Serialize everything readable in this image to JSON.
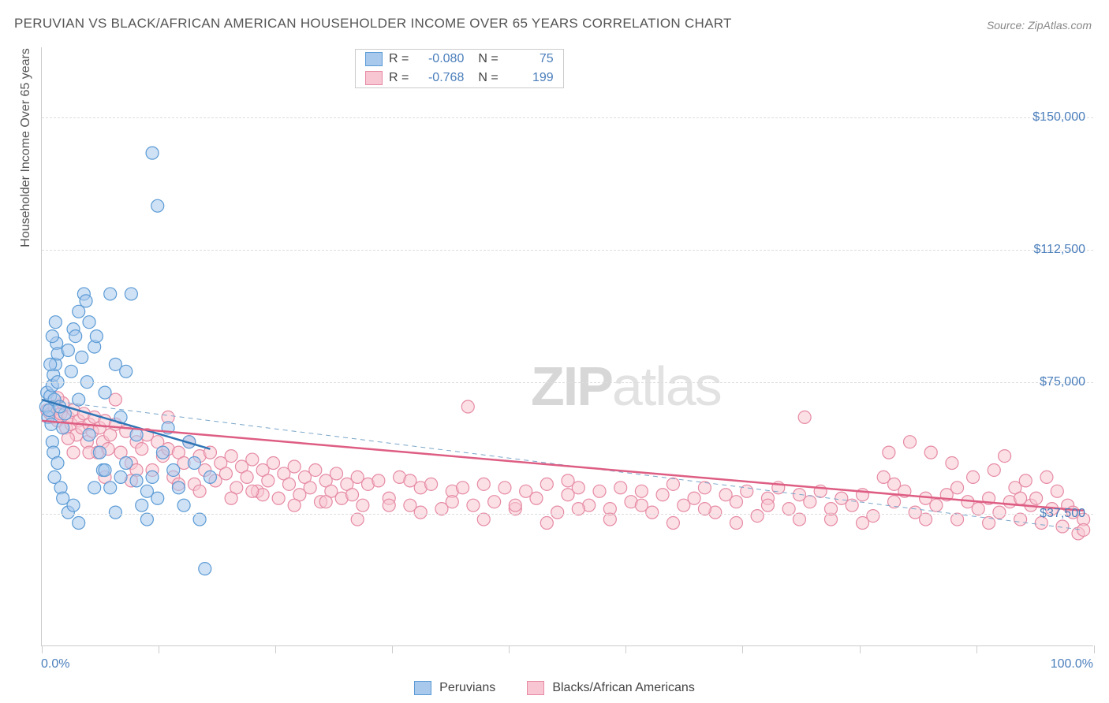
{
  "title": "PERUVIAN VS BLACK/AFRICAN AMERICAN HOUSEHOLDER INCOME OVER 65 YEARS CORRELATION CHART",
  "source": "Source: ZipAtlas.com",
  "y_axis_title": "Householder Income Over 65 years",
  "watermark_a": "ZIP",
  "watermark_b": "atlas",
  "xlim": [
    0,
    100
  ],
  "ylim": [
    0,
    170000
  ],
  "y_ticks": [
    37500,
    75000,
    112500,
    150000
  ],
  "y_tick_labels": [
    "$37,500",
    "$75,000",
    "$112,500",
    "$150,000"
  ],
  "x_first_label": "0.0%",
  "x_last_label": "100.0%",
  "x_tick_positions": [
    0,
    11.1,
    22.2,
    33.3,
    44.4,
    55.5,
    66.6,
    77.7,
    88.8,
    100
  ],
  "grid_color": "#dddddd",
  "text_color_axis": "#4a7ebb",
  "series": [
    {
      "name": "Peruvians",
      "R": "-0.080",
      "N": "75",
      "color_fill": "#a8c8ec",
      "color_stroke": "#5b9bd5",
      "fill_opacity": 0.55,
      "marker_radius": 8,
      "line_color": "#2e75b6",
      "line_width": 2.5,
      "trend": {
        "x0": 0,
        "y0": 70000,
        "x1": 16,
        "y1": 56000
      },
      "dash_line": {
        "x0": 0,
        "y0": 70000,
        "x1": 99,
        "y1": 33000,
        "color": "#7aa6c9",
        "dash": "6,5",
        "width": 1
      },
      "points": [
        [
          0.4,
          68000
        ],
        [
          0.5,
          72000
        ],
        [
          0.6,
          65000
        ],
        [
          0.7,
          67000
        ],
        [
          0.8,
          71000
        ],
        [
          0.9,
          63000
        ],
        [
          1.0,
          74000
        ],
        [
          1.1,
          77000
        ],
        [
          1.2,
          70000
        ],
        [
          1.3,
          80000
        ],
        [
          1.4,
          86000
        ],
        [
          1.5,
          83000
        ],
        [
          1.0,
          58000
        ],
        [
          1.1,
          55000
        ],
        [
          1.2,
          48000
        ],
        [
          1.5,
          52000
        ],
        [
          1.8,
          45000
        ],
        [
          2.0,
          62000
        ],
        [
          2.2,
          66000
        ],
        [
          2.5,
          84000
        ],
        [
          2.8,
          78000
        ],
        [
          3.0,
          90000
        ],
        [
          3.2,
          88000
        ],
        [
          3.5,
          95000
        ],
        [
          3.5,
          70000
        ],
        [
          3.8,
          82000
        ],
        [
          4.0,
          100000
        ],
        [
          4.2,
          98000
        ],
        [
          4.3,
          75000
        ],
        [
          4.5,
          60000
        ],
        [
          5.0,
          85000
        ],
        [
          5.2,
          88000
        ],
        [
          5.5,
          55000
        ],
        [
          5.8,
          50000
        ],
        [
          6.0,
          72000
        ],
        [
          6.5,
          45000
        ],
        [
          6.5,
          100000
        ],
        [
          7.0,
          38000
        ],
        [
          7.0,
          80000
        ],
        [
          7.5,
          48000
        ],
        [
          8.0,
          52000
        ],
        [
          8.0,
          78000
        ],
        [
          8.5,
          100000
        ],
        [
          9.0,
          60000
        ],
        [
          9.5,
          40000
        ],
        [
          10.0,
          36000
        ],
        [
          10.0,
          44000
        ],
        [
          10.5,
          48000
        ],
        [
          10.5,
          140000
        ],
        [
          11.0,
          125000
        ],
        [
          11.5,
          55000
        ],
        [
          12.0,
          62000
        ],
        [
          12.5,
          50000
        ],
        [
          13.0,
          45000
        ],
        [
          13.5,
          40000
        ],
        [
          14.0,
          58000
        ],
        [
          14.5,
          52000
        ],
        [
          15.0,
          36000
        ],
        [
          15.5,
          22000
        ],
        [
          16.0,
          48000
        ],
        [
          2.0,
          42000
        ],
        [
          2.5,
          38000
        ],
        [
          3.0,
          40000
        ],
        [
          3.5,
          35000
        ],
        [
          0.8,
          80000
        ],
        [
          1.0,
          88000
        ],
        [
          1.3,
          92000
        ],
        [
          1.5,
          75000
        ],
        [
          1.7,
          68000
        ],
        [
          4.5,
          92000
        ],
        [
          5.0,
          45000
        ],
        [
          6.0,
          50000
        ],
        [
          7.5,
          65000
        ],
        [
          9.0,
          47000
        ],
        [
          11.0,
          42000
        ]
      ]
    },
    {
      "name": "Blacks/African Americans",
      "R": "-0.768",
      "N": "199",
      "color_fill": "#f7c6d2",
      "color_stroke": "#e68aa4",
      "fill_opacity": 0.55,
      "marker_radius": 8,
      "line_color": "#de5d83",
      "line_width": 2.5,
      "trend": {
        "x0": 0,
        "y0": 64000,
        "x1": 99,
        "y1": 38500
      },
      "points": [
        [
          0.5,
          67000
        ],
        [
          0.8,
          66000
        ],
        [
          1.0,
          65000
        ],
        [
          1.2,
          68000
        ],
        [
          1.5,
          64000
        ],
        [
          1.8,
          66000
        ],
        [
          2.0,
          69000
        ],
        [
          2.3,
          62000
        ],
        [
          2.5,
          65000
        ],
        [
          2.8,
          63000
        ],
        [
          3.0,
          67000
        ],
        [
          3.3,
          60000
        ],
        [
          3.5,
          64000
        ],
        [
          3.8,
          62000
        ],
        [
          4.0,
          66000
        ],
        [
          4.3,
          58000
        ],
        [
          4.5,
          63000
        ],
        [
          4.8,
          61000
        ],
        [
          5.0,
          65000
        ],
        [
          5.3,
          55000
        ],
        [
          5.5,
          62000
        ],
        [
          5.8,
          58000
        ],
        [
          6.0,
          64000
        ],
        [
          6.3,
          56000
        ],
        [
          6.5,
          60000
        ],
        [
          7.0,
          63000
        ],
        [
          7.5,
          55000
        ],
        [
          8.0,
          61000
        ],
        [
          8.5,
          52000
        ],
        [
          9.0,
          58000
        ],
        [
          9.5,
          56000
        ],
        [
          10.0,
          60000
        ],
        [
          10.5,
          50000
        ],
        [
          11.0,
          58000
        ],
        [
          11.5,
          54000
        ],
        [
          12.0,
          56000
        ],
        [
          12.5,
          48000
        ],
        [
          13.0,
          55000
        ],
        [
          13.5,
          52000
        ],
        [
          14.0,
          58000
        ],
        [
          14.5,
          46000
        ],
        [
          15.0,
          54000
        ],
        [
          15.5,
          50000
        ],
        [
          16.0,
          55000
        ],
        [
          16.5,
          47000
        ],
        [
          17.0,
          52000
        ],
        [
          17.5,
          49000
        ],
        [
          18.0,
          54000
        ],
        [
          18.5,
          45000
        ],
        [
          19.0,
          51000
        ],
        [
          19.5,
          48000
        ],
        [
          20.0,
          53000
        ],
        [
          20.5,
          44000
        ],
        [
          21.0,
          50000
        ],
        [
          21.5,
          47000
        ],
        [
          22.0,
          52000
        ],
        [
          22.5,
          42000
        ],
        [
          23.0,
          49000
        ],
        [
          23.5,
          46000
        ],
        [
          24.0,
          51000
        ],
        [
          24.5,
          43000
        ],
        [
          25.0,
          48000
        ],
        [
          25.5,
          45000
        ],
        [
          26.0,
          50000
        ],
        [
          26.5,
          41000
        ],
        [
          27.0,
          47000
        ],
        [
          27.5,
          44000
        ],
        [
          28.0,
          49000
        ],
        [
          28.5,
          42000
        ],
        [
          29.0,
          46000
        ],
        [
          29.5,
          43000
        ],
        [
          30.0,
          48000
        ],
        [
          30.5,
          40000
        ],
        [
          31.0,
          46000
        ],
        [
          32.0,
          47000
        ],
        [
          33.0,
          42000
        ],
        [
          34.0,
          48000
        ],
        [
          35.0,
          40000
        ],
        [
          36.0,
          45000
        ],
        [
          37.0,
          46000
        ],
        [
          38.0,
          39000
        ],
        [
          39.0,
          44000
        ],
        [
          40.0,
          45000
        ],
        [
          40.5,
          68000
        ],
        [
          41.0,
          40000
        ],
        [
          42.0,
          46000
        ],
        [
          43.0,
          41000
        ],
        [
          44.0,
          45000
        ],
        [
          45.0,
          39000
        ],
        [
          46.0,
          44000
        ],
        [
          47.0,
          42000
        ],
        [
          48.0,
          46000
        ],
        [
          49.0,
          38000
        ],
        [
          50.0,
          43000
        ],
        [
          51.0,
          45000
        ],
        [
          52.0,
          40000
        ],
        [
          53.0,
          44000
        ],
        [
          54.0,
          39000
        ],
        [
          55.0,
          45000
        ],
        [
          56.0,
          41000
        ],
        [
          57.0,
          44000
        ],
        [
          58.0,
          38000
        ],
        [
          59.0,
          43000
        ],
        [
          60.0,
          46000
        ],
        [
          61.0,
          40000
        ],
        [
          62.0,
          42000
        ],
        [
          63.0,
          45000
        ],
        [
          64.0,
          38000
        ],
        [
          65.0,
          43000
        ],
        [
          66.0,
          41000
        ],
        [
          67.0,
          44000
        ],
        [
          68.0,
          37000
        ],
        [
          69.0,
          42000
        ],
        [
          70.0,
          45000
        ],
        [
          71.0,
          39000
        ],
        [
          72.0,
          43000
        ],
        [
          72.5,
          65000
        ],
        [
          73.0,
          41000
        ],
        [
          74.0,
          44000
        ],
        [
          75.0,
          36000
        ],
        [
          76.0,
          42000
        ],
        [
          77.0,
          40000
        ],
        [
          78.0,
          43000
        ],
        [
          79.0,
          37000
        ],
        [
          80.0,
          48000
        ],
        [
          80.5,
          55000
        ],
        [
          81.0,
          41000
        ],
        [
          82.0,
          44000
        ],
        [
          82.5,
          58000
        ],
        [
          83.0,
          38000
        ],
        [
          84.0,
          42000
        ],
        [
          84.5,
          55000
        ],
        [
          85.0,
          40000
        ],
        [
          86.0,
          43000
        ],
        [
          86.5,
          52000
        ],
        [
          87.0,
          36000
        ],
        [
          88.0,
          41000
        ],
        [
          88.5,
          48000
        ],
        [
          89.0,
          39000
        ],
        [
          90.0,
          42000
        ],
        [
          90.5,
          50000
        ],
        [
          91.0,
          38000
        ],
        [
          91.5,
          54000
        ],
        [
          92.0,
          41000
        ],
        [
          92.5,
          45000
        ],
        [
          93.0,
          36000
        ],
        [
          93.5,
          47000
        ],
        [
          94.0,
          40000
        ],
        [
          94.5,
          42000
        ],
        [
          95.0,
          35000
        ],
        [
          95.5,
          48000
        ],
        [
          96.0,
          39000
        ],
        [
          96.5,
          44000
        ],
        [
          97.0,
          34000
        ],
        [
          97.5,
          40000
        ],
        [
          98.0,
          38000
        ],
        [
          98.5,
          32000
        ],
        [
          99.0,
          36000
        ],
        [
          99.0,
          33000
        ],
        [
          7.0,
          70000
        ],
        [
          12.0,
          65000
        ],
        [
          18.0,
          42000
        ],
        [
          24.0,
          40000
        ],
        [
          30.0,
          36000
        ],
        [
          36.0,
          38000
        ],
        [
          42.0,
          36000
        ],
        [
          48.0,
          35000
        ],
        [
          54.0,
          36000
        ],
        [
          60.0,
          35000
        ],
        [
          66.0,
          35000
        ],
        [
          72.0,
          36000
        ],
        [
          78.0,
          35000
        ],
        [
          84.0,
          36000
        ],
        [
          90.0,
          35000
        ],
        [
          3.0,
          55000
        ],
        [
          6.0,
          48000
        ],
        [
          9.0,
          50000
        ],
        [
          15.0,
          44000
        ],
        [
          21.0,
          43000
        ],
        [
          27.0,
          41000
        ],
        [
          33.0,
          40000
        ],
        [
          39.0,
          41000
        ],
        [
          45.0,
          40000
        ],
        [
          51.0,
          39000
        ],
        [
          57.0,
          40000
        ],
        [
          63.0,
          39000
        ],
        [
          69.0,
          40000
        ],
        [
          75.0,
          39000
        ],
        [
          81.0,
          46000
        ],
        [
          87.0,
          45000
        ],
        [
          93.0,
          42000
        ],
        [
          1.5,
          70500
        ],
        [
          2.5,
          59000
        ],
        [
          4.5,
          55000
        ],
        [
          8.5,
          47000
        ],
        [
          13.0,
          46000
        ],
        [
          20.0,
          44000
        ],
        [
          35.0,
          47000
        ],
        [
          50.0,
          47000
        ]
      ]
    }
  ]
}
